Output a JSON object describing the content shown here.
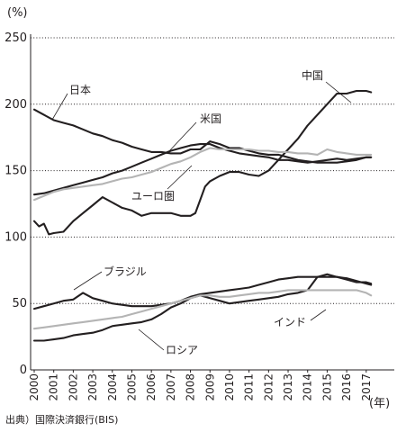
{
  "source": "出典）国際決済銀行(BIS)",
  "chart_data": {
    "type": "line",
    "ylabel": "(%)",
    "xlabel": "(年)",
    "ylim": [
      0,
      250
    ],
    "yticks": [
      0,
      50,
      100,
      150,
      200,
      250
    ],
    "xlim": [
      2000,
      2017.7
    ],
    "xticks": [
      "2000",
      "2001",
      "2002",
      "2003",
      "2004",
      "2005",
      "2006",
      "2007",
      "2008",
      "2009",
      "2010",
      "2011",
      "2012",
      "2013",
      "2014",
      "2015",
      "2016",
      "2017"
    ],
    "grid": "horizontal-dotted",
    "series": [
      {
        "name": "中国",
        "color": "#231f20",
        "x": [
          2000,
          2000.25,
          2000.5,
          2000.75,
          2001,
          2001.5,
          2002,
          2002.5,
          2003,
          2003.5,
          2004,
          2004.5,
          2005,
          2005.5,
          2006,
          2006.5,
          2007,
          2007.5,
          2008,
          2008.25,
          2008.5,
          2008.75,
          2009,
          2009.5,
          2010,
          2010.5,
          2011,
          2011.5,
          2012,
          2012.5,
          2013,
          2013.5,
          2014,
          2014.5,
          2015,
          2015.5,
          2016,
          2016.5,
          2017,
          2017.25
        ],
        "values": [
          112,
          108,
          110,
          102,
          103,
          104,
          112,
          118,
          124,
          130,
          126,
          122,
          120,
          116,
          118,
          118,
          118,
          116,
          116,
          118,
          128,
          138,
          142,
          146,
          149,
          149,
          147,
          146,
          150,
          158,
          166,
          174,
          184,
          192,
          200,
          208,
          208,
          210,
          210,
          209
        ]
      },
      {
        "name": "日本",
        "color": "#231f20",
        "x": [
          2000,
          2000.5,
          2001,
          2001.5,
          2002,
          2002.5,
          2003,
          2003.5,
          2004,
          2004.5,
          2005,
          2005.5,
          2006,
          2006.5,
          2007,
          2007.5,
          2008,
          2008.5,
          2009,
          2009.5,
          2010,
          2010.5,
          2011,
          2011.5,
          2012,
          2012.5,
          2013,
          2013.5,
          2014,
          2014.5,
          2015,
          2015.5,
          2016,
          2016.5,
          2017,
          2017.25
        ],
        "values": [
          196,
          192,
          188,
          186,
          184,
          181,
          178,
          176,
          173,
          171,
          168,
          166,
          164,
          164,
          163,
          163,
          166,
          166,
          172,
          170,
          167,
          167,
          165,
          163,
          162,
          162,
          160,
          158,
          157,
          156,
          156,
          156,
          157,
          158,
          160,
          160
        ]
      },
      {
        "name": "米国",
        "color": "#231f20",
        "x": [
          2000,
          2000.5,
          2001,
          2001.5,
          2002,
          2002.5,
          2003,
          2003.5,
          2004,
          2004.5,
          2005,
          2005.5,
          2006,
          2006.5,
          2007,
          2007.5,
          2008,
          2008.5,
          2009,
          2009.5,
          2010,
          2010.5,
          2011,
          2011.5,
          2012,
          2012.5,
          2013,
          2013.5,
          2014,
          2014.5,
          2015,
          2015.5,
          2016,
          2016.5,
          2017,
          2017.25
        ],
        "values": [
          132,
          133,
          135,
          137,
          139,
          141,
          143,
          145,
          148,
          150,
          153,
          156,
          159,
          162,
          165,
          167,
          169,
          170,
          170,
          167,
          165,
          163,
          162,
          161,
          160,
          158,
          158,
          157,
          156,
          157,
          158,
          159,
          158,
          159,
          160,
          160
        ]
      },
      {
        "name": "ユーロ圏",
        "color": "#b4b4b4",
        "x": [
          2000,
          2000.5,
          2001,
          2001.5,
          2002,
          2002.5,
          2003,
          2003.5,
          2004,
          2004.5,
          2005,
          2005.5,
          2006,
          2006.5,
          2007,
          2007.5,
          2008,
          2008.5,
          2009,
          2009.5,
          2010,
          2010.5,
          2011,
          2011.5,
          2012,
          2012.5,
          2013,
          2013.5,
          2014,
          2014.5,
          2015,
          2015.5,
          2016,
          2016.5,
          2017,
          2017.25
        ],
        "values": [
          128,
          131,
          134,
          136,
          137,
          138,
          139,
          140,
          142,
          144,
          145,
          147,
          149,
          152,
          155,
          157,
          160,
          164,
          167,
          166,
          166,
          166,
          166,
          165,
          165,
          164,
          164,
          163,
          163,
          162,
          166,
          164,
          163,
          162,
          162,
          162
        ]
      },
      {
        "name": "ブラジル",
        "color": "#231f20",
        "x": [
          2000,
          2000.5,
          2001,
          2001.5,
          2002,
          2002.5,
          2003,
          2003.5,
          2004,
          2004.5,
          2005,
          2005.5,
          2006,
          2006.5,
          2007,
          2007.5,
          2008,
          2008.5,
          2009,
          2009.5,
          2010,
          2010.5,
          2011,
          2011.5,
          2012,
          2012.5,
          2013,
          2013.5,
          2014,
          2014.5,
          2015,
          2015.5,
          2016,
          2016.5,
          2017,
          2017.25
        ],
        "values": [
          46,
          48,
          50,
          52,
          53,
          58,
          54,
          52,
          50,
          49,
          48,
          48,
          48,
          49,
          50,
          52,
          55,
          57,
          58,
          59,
          60,
          61,
          62,
          64,
          66,
          68,
          69,
          70,
          70,
          70,
          70,
          70,
          69,
          67,
          65,
          64
        ]
      },
      {
        "name": "インド",
        "color": "#231f20",
        "x": [
          2000,
          2000.5,
          2001,
          2001.5,
          2002,
          2002.5,
          2003,
          2003.5,
          2004,
          2004.5,
          2005,
          2005.5,
          2006,
          2006.5,
          2007,
          2007.5,
          2008,
          2008.5,
          2009,
          2009.5,
          2010,
          2010.5,
          2011,
          2011.5,
          2012,
          2012.5,
          2013,
          2013.5,
          2014,
          2014.5,
          2015,
          2015.5,
          2016,
          2016.5,
          2017,
          2017.25
        ],
        "values": [
          22,
          22,
          23,
          24,
          26,
          27,
          28,
          30,
          33,
          34,
          35,
          36,
          38,
          42,
          47,
          50,
          54,
          56,
          54,
          52,
          50,
          51,
          52,
          53,
          54,
          55,
          57,
          58,
          60,
          70,
          72,
          70,
          68,
          66,
          66,
          65
        ]
      },
      {
        "name": "ロシア",
        "color": "#b4b4b4",
        "x": [
          2000,
          2000.5,
          2001,
          2001.5,
          2002,
          2002.5,
          2003,
          2003.5,
          2004,
          2004.5,
          2005,
          2005.5,
          2006,
          2006.5,
          2007,
          2007.5,
          2008,
          2008.5,
          2009,
          2009.5,
          2010,
          2010.5,
          2011,
          2011.5,
          2012,
          2012.5,
          2013,
          2013.5,
          2014,
          2014.5,
          2015,
          2015.5,
          2016,
          2016.5,
          2017,
          2017.25
        ],
        "values": [
          31,
          32,
          33,
          34,
          35,
          36,
          37,
          38,
          39,
          40,
          42,
          44,
          46,
          48,
          50,
          52,
          54,
          56,
          56,
          55,
          55,
          56,
          57,
          58,
          58,
          59,
          60,
          60,
          60,
          60,
          60,
          60,
          60,
          60,
          58,
          56
        ]
      }
    ],
    "annotations": [
      "中国",
      "日本",
      "米国",
      "ユーロ圏",
      "ブラジル",
      "インド",
      "ロシア"
    ]
  }
}
